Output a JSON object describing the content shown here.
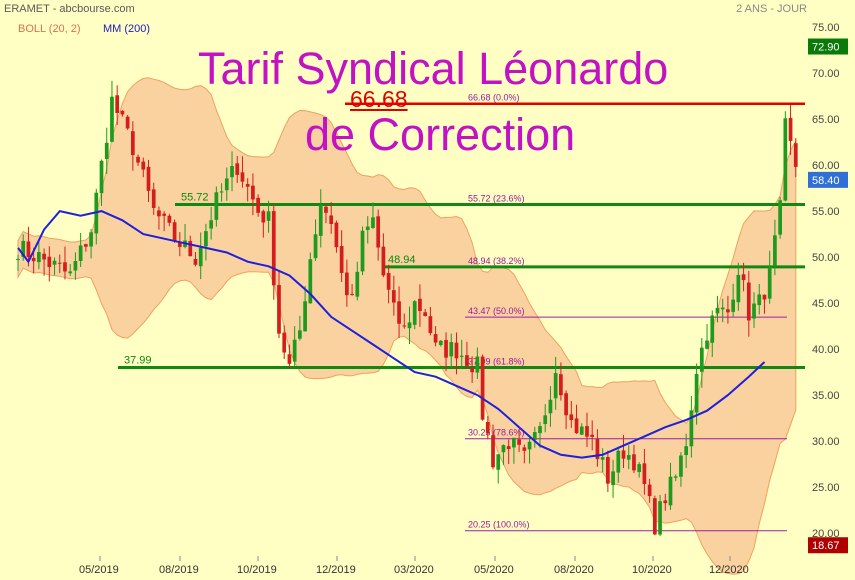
{
  "header": {
    "source": "ERAMET - abcbourse.com",
    "period": "2 ANS - JOUR",
    "boll_legend": "BOLL (20, 2)",
    "mm_legend": "MM (200)"
  },
  "title": {
    "line1": "Tarif Syndical Léonardo",
    "line2": "de Correction",
    "high_label": "66.68"
  },
  "colors": {
    "background": "#ffffc4",
    "band_fill": "#f9d2a0",
    "band_edge": "#f0a060",
    "candle_up": "#1e9b1e",
    "candle_down": "#d41e1e",
    "ma_line": "#1f1fdc",
    "support": "#118811",
    "resistance": "#e00000",
    "fib_thin": "#a020a0",
    "title": "#c312c3"
  },
  "chart_data": {
    "type": "candlestick",
    "y_axis": {
      "min": 17.5,
      "max": 76,
      "ticks": [
        "20.00",
        "25.00",
        "30.00",
        "35.00",
        "40.00",
        "45.00",
        "50.00",
        "55.00",
        "60.00",
        "65.00",
        "70.00",
        "75.00"
      ]
    },
    "x_labels": [
      "05/2019",
      "08/2019",
      "10/2019",
      "12/2019",
      "03/2020",
      "05/2020",
      "08/2020",
      "10/2020",
      "12/2020"
    ],
    "price_badges": [
      {
        "value": 72.9,
        "text": "72.90",
        "color": "#0a7a0a"
      },
      {
        "value": 58.4,
        "text": "58.40",
        "color": "#2f6fd6"
      },
      {
        "value": 18.67,
        "text": "18.67",
        "color": "#b00000"
      }
    ],
    "fib_levels": [
      {
        "value": 66.68,
        "label": "66.68 (0.0%)"
      },
      {
        "value": 55.72,
        "label": "55.72 (23.6%)"
      },
      {
        "value": 48.94,
        "label": "48.94 (38.2%)"
      },
      {
        "value": 43.47,
        "label": "43.47 (50.0%)"
      },
      {
        "value": 37.99,
        "label": "37.99 (61.8%)"
      },
      {
        "value": 30.25,
        "label": "30.25 (78.6%)"
      },
      {
        "value": 20.25,
        "label": "20.25 (100.0%)"
      }
    ],
    "support_lines": [
      {
        "value": 55.72,
        "text": "55.72"
      },
      {
        "value": 48.94,
        "text": "48.94"
      },
      {
        "value": 37.99,
        "text": "37.99"
      }
    ],
    "resistance_line": {
      "value": 66.68
    },
    "close_path": [
      [
        0,
        51
      ],
      [
        4,
        50
      ],
      [
        10,
        48
      ],
      [
        14,
        53
      ],
      [
        18,
        67
      ],
      [
        22,
        62
      ],
      [
        26,
        55
      ],
      [
        30,
        52
      ],
      [
        34,
        50
      ],
      [
        38,
        56
      ],
      [
        42,
        60
      ],
      [
        46,
        55
      ],
      [
        48,
        54
      ],
      [
        50,
        42
      ],
      [
        52,
        38
      ],
      [
        54,
        42
      ],
      [
        56,
        50
      ],
      [
        58,
        56
      ],
      [
        60,
        54
      ],
      [
        62,
        48
      ],
      [
        64,
        45
      ],
      [
        66,
        52
      ],
      [
        68,
        54
      ],
      [
        70,
        48
      ],
      [
        72,
        44
      ],
      [
        74,
        42
      ],
      [
        76,
        45
      ],
      [
        78,
        44
      ],
      [
        80,
        40
      ],
      [
        84,
        40
      ],
      [
        88,
        38
      ],
      [
        89,
        33
      ],
      [
        91,
        28
      ],
      [
        94,
        30
      ],
      [
        97,
        28
      ],
      [
        100,
        31
      ],
      [
        103,
        38
      ],
      [
        106,
        32
      ],
      [
        110,
        30
      ],
      [
        113,
        26
      ],
      [
        116,
        29
      ],
      [
        118,
        28
      ],
      [
        120,
        25
      ],
      [
        122,
        21
      ],
      [
        124,
        24
      ],
      [
        126,
        26
      ],
      [
        128,
        30
      ],
      [
        130,
        38
      ],
      [
        132,
        42
      ],
      [
        134,
        44
      ],
      [
        136,
        44
      ],
      [
        138,
        49
      ],
      [
        140,
        44
      ],
      [
        142,
        45
      ],
      [
        144,
        48
      ],
      [
        146,
        55
      ],
      [
        147,
        64
      ],
      [
        149,
        60
      ],
      [
        150,
        58
      ]
    ],
    "ma200_path": [
      [
        0,
        51
      ],
      [
        2,
        49.5
      ],
      [
        5,
        53
      ],
      [
        8,
        55
      ],
      [
        12,
        54.5
      ],
      [
        16,
        55
      ],
      [
        20,
        54
      ],
      [
        24,
        52.5
      ],
      [
        28,
        52
      ],
      [
        32,
        51.5
      ],
      [
        36,
        51
      ],
      [
        40,
        50.5
      ],
      [
        44,
        49.5
      ],
      [
        48,
        49
      ],
      [
        52,
        48
      ],
      [
        56,
        46
      ],
      [
        60,
        43.5
      ],
      [
        64,
        42
      ],
      [
        68,
        40.5
      ],
      [
        72,
        39
      ],
      [
        76,
        37.5
      ],
      [
        80,
        37
      ],
      [
        84,
        36
      ],
      [
        88,
        35
      ],
      [
        92,
        33.5
      ],
      [
        96,
        31.5
      ],
      [
        100,
        29.5
      ],
      [
        104,
        28.5
      ],
      [
        108,
        28.2
      ],
      [
        112,
        28.5
      ],
      [
        116,
        29.5
      ],
      [
        120,
        30.5
      ],
      [
        124,
        31.5
      ],
      [
        128,
        32.3
      ],
      [
        132,
        33.3
      ],
      [
        136,
        35
      ],
      [
        140,
        37
      ],
      [
        143,
        38.6
      ]
    ]
  }
}
